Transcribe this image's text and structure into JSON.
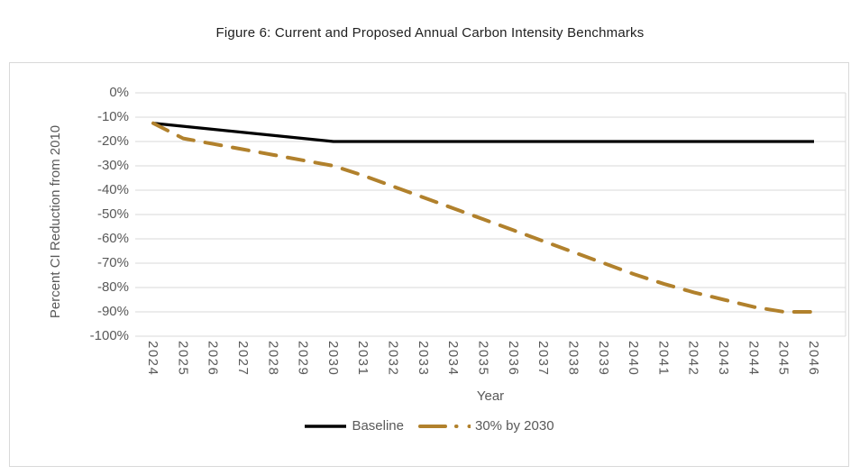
{
  "figure": {
    "title": "Figure 6: Current and Proposed Annual Carbon Intensity Benchmarks"
  },
  "axes": {
    "y_title": "Percent CI Reduction from 2010",
    "x_title": "Year",
    "y_tick_labels": [
      "0%",
      "-10%",
      "-20%",
      "-30%",
      "-40%",
      "-50%",
      "-60%",
      "-70%",
      "-80%",
      "-90%",
      "-100%"
    ]
  },
  "colors": {
    "baseline_line": "#000000",
    "proposed_line": "#b1812c",
    "gridline": "#d9d9d9",
    "axis_text": "#595959",
    "card_border": "#d9d9d9"
  },
  "chart_data": {
    "type": "line",
    "title": "Figure 6: Current and Proposed Annual Carbon Intensity Benchmarks",
    "xlabel": "Year",
    "ylabel": "Percent CI Reduction from 2010",
    "x": [
      2024,
      2025,
      2026,
      2027,
      2028,
      2029,
      2030,
      2031,
      2032,
      2033,
      2034,
      2035,
      2036,
      2037,
      2038,
      2039,
      2040,
      2041,
      2042,
      2043,
      2044,
      2045,
      2046
    ],
    "ylim": [
      -100,
      0
    ],
    "ytick_step": 10,
    "grid": true,
    "legend_position": "bottom",
    "series": [
      {
        "name": "Baseline",
        "color": "#000000",
        "style": "solid",
        "values": [
          -12.5,
          -13.75,
          -15,
          -16.25,
          -17.5,
          -18.75,
          -20,
          -20,
          -20,
          -20,
          -20,
          -20,
          -20,
          -20,
          -20,
          -20,
          -20,
          -20,
          -20,
          -20,
          -20,
          -20,
          -20
        ]
      },
      {
        "name": "30% by 2030",
        "color": "#b1812c",
        "style": "dashed",
        "values": [
          -12.5,
          -18.75,
          -21,
          -23.25,
          -25.5,
          -27.75,
          -30,
          -34,
          -38.5,
          -43,
          -47.5,
          -52,
          -56.5,
          -61,
          -65.5,
          -70,
          -74.5,
          -78.5,
          -82,
          -85,
          -88,
          -90,
          -90
        ]
      }
    ]
  }
}
